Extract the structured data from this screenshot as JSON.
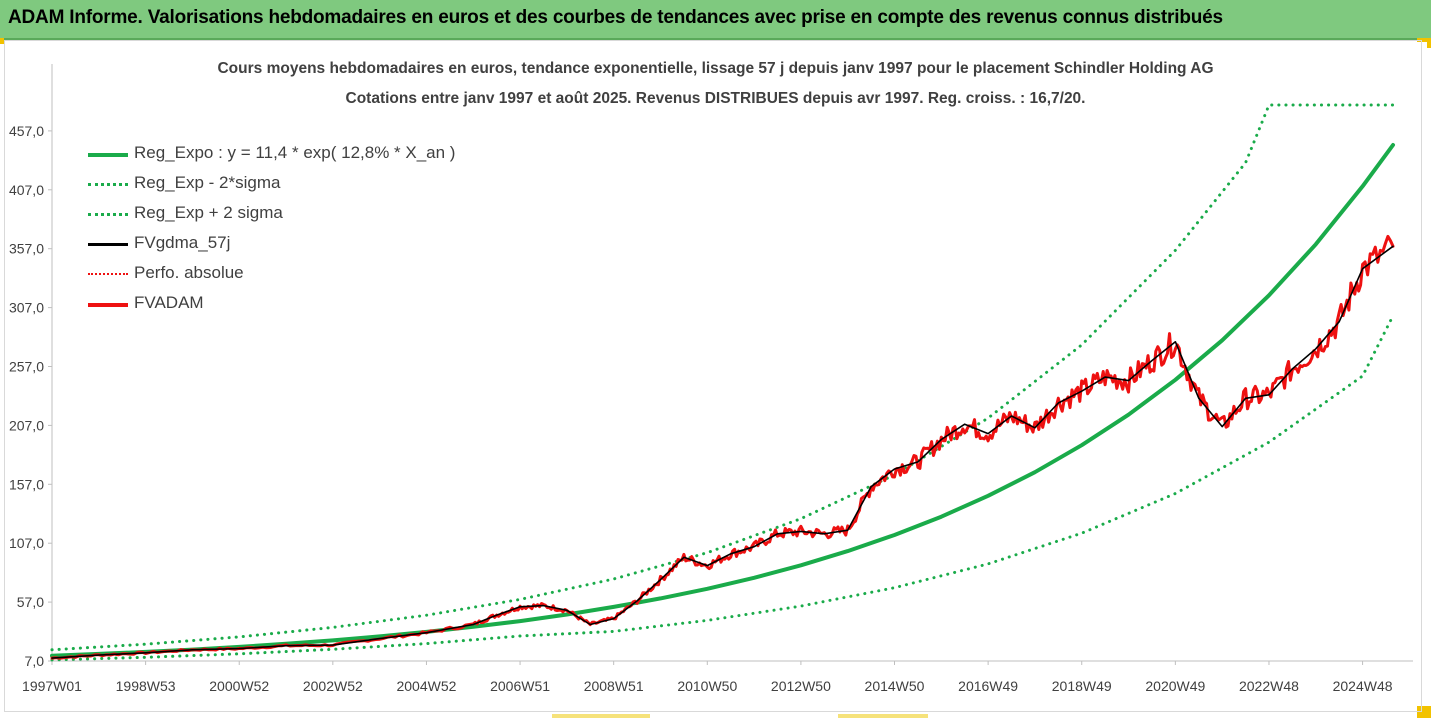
{
  "banner": {
    "title": "ADAM Informe. Valorisations hebdomadaires en euros et des courbes de tendances avec prise en compte des revenus connus distribués"
  },
  "colors": {
    "banner_bg": "#7fc97f",
    "regression": "#1aab4a",
    "fvgdma": "#000000",
    "fvadam": "#ee1111",
    "perfo": "#ee1111",
    "corner_accent": "#f2c200"
  },
  "chart_data": {
    "type": "line",
    "title": "Cours moyens hebdomadaires en euros, tendance exponentielle, lissage 57 j depuis janv 1997 pour le placement Schindler Holding AG",
    "subtitle": "Cotations entre janv 1997 et août 2025. Revenus DISTRIBUES depuis avr 1997. Reg. croiss. : 16,7/20.",
    "xlabel": "",
    "ylabel": "",
    "y_ticks": [
      "7,0",
      "57,0",
      "107,0",
      "157,0",
      "207,0",
      "257,0",
      "307,0",
      "357,0",
      "407,0",
      "457,0"
    ],
    "ylim": [
      7,
      507
    ],
    "x_ticks": [
      "1997W01",
      "1998W53",
      "2000W52",
      "2002W52",
      "2004W52",
      "2006W51",
      "2008W51",
      "2010W50",
      "2012W50",
      "2014W50",
      "2016W49",
      "2018W49",
      "2020W49",
      "2022W48",
      "2024W48"
    ],
    "x_tick_years": [
      1997.0,
      1999.0,
      2001.0,
      2003.0,
      2005.0,
      2007.0,
      2009.0,
      2011.0,
      2013.0,
      2015.0,
      2017.0,
      2019.0,
      2021.0,
      2023.0,
      2025.0
    ],
    "xlim": [
      1997.0,
      2025.65
    ],
    "grid": false,
    "legend_position": "top-left",
    "series": [
      {
        "name": "Reg_Expo : y = 11,4 * exp( 12,8% *  X_an )",
        "style": "solid-thick",
        "color": "#1aab4a",
        "x": [
          1997.0,
          1998.0,
          1999.0,
          2000.0,
          2001.0,
          2002.0,
          2003.0,
          2004.0,
          2005.0,
          2006.0,
          2007.0,
          2008.0,
          2009.0,
          2010.0,
          2011.0,
          2012.0,
          2013.0,
          2014.0,
          2015.0,
          2016.0,
          2017.0,
          2018.0,
          2019.0,
          2020.0,
          2021.0,
          2022.0,
          2023.0,
          2024.0,
          2025.0,
          2025.65
        ],
        "y": [
          11.4,
          13.0,
          14.7,
          16.7,
          19.0,
          21.6,
          24.5,
          27.9,
          31.7,
          36.0,
          40.9,
          46.5,
          52.9,
          60.1,
          68.3,
          77.6,
          88.2,
          100.3,
          114.0,
          129.5,
          147.2,
          167.3,
          190.2,
          216.1,
          245.7,
          279.2,
          317.4,
          360.7,
          410.0,
          445.0
        ]
      },
      {
        "name": "Reg_Exp - 2*sigma",
        "style": "dotted",
        "color": "#1aab4a",
        "x": [
          1997.0,
          1999.0,
          2001.0,
          2003.0,
          2005.0,
          2007.0,
          2009.0,
          2011.0,
          2013.0,
          2015.0,
          2017.0,
          2019.0,
          2021.0,
          2023.0,
          2025.0,
          2025.65
        ],
        "y": [
          7.9,
          10.1,
          13.1,
          16.9,
          21.8,
          28.2,
          32.1,
          41.5,
          53.6,
          69.2,
          89.4,
          115.5,
          149.2,
          192.7,
          248.9,
          300.0
        ]
      },
      {
        "name": "Reg_Exp + 2 sigma",
        "style": "dotted",
        "color": "#1aab4a",
        "x": [
          1997.0,
          1999.0,
          2001.0,
          2003.0,
          2005.0,
          2007.0,
          2009.0,
          2011.0,
          2013.0,
          2015.0,
          2017.0,
          2019.0,
          2021.0,
          2022.5,
          2023.0,
          2025.65
        ],
        "y": [
          16.5,
          21.3,
          27.5,
          35.5,
          45.9,
          59.3,
          76.6,
          98.9,
          127.8,
          165.0,
          213.2,
          275.3,
          355.6,
          430.0,
          479.0,
          479.0
        ]
      },
      {
        "name": "FVgdma_57j",
        "style": "solid",
        "color": "#000000",
        "x": [
          1997.0,
          1998.0,
          1999.0,
          2000.0,
          2001.0,
          2002.0,
          2003.0,
          2004.0,
          2005.0,
          2006.0,
          2006.5,
          2007.0,
          2007.5,
          2008.0,
          2008.5,
          2009.0,
          2009.5,
          2010.0,
          2010.5,
          2011.0,
          2011.5,
          2012.0,
          2012.5,
          2013.0,
          2013.5,
          2014.0,
          2014.5,
          2015.0,
          2015.5,
          2016.0,
          2016.5,
          2017.0,
          2017.5,
          2018.0,
          2018.5,
          2019.0,
          2019.5,
          2020.0,
          2020.5,
          2021.0,
          2021.5,
          2022.0,
          2022.5,
          2023.0,
          2023.5,
          2024.0,
          2024.5,
          2025.0,
          2025.65
        ],
        "y": [
          9.5,
          12.0,
          14.0,
          16.5,
          17.5,
          20.0,
          20.5,
          26.0,
          31.0,
          38.0,
          46.0,
          53.0,
          54.0,
          50.0,
          38.0,
          43.0,
          58.0,
          76.0,
          95.0,
          88.0,
          98.0,
          104.0,
          115.0,
          117.0,
          115.0,
          118.0,
          155.0,
          170.0,
          176.0,
          195.0,
          208.0,
          200.0,
          215.0,
          205.0,
          226.0,
          236.0,
          248.0,
          245.0,
          262.0,
          278.0,
          230.0,
          206.0,
          230.0,
          233.0,
          255.0,
          272.0,
          295.0,
          340.0,
          359.0
        ]
      },
      {
        "name": "Perfo. absolue",
        "style": "dotted",
        "color": "#ee1111",
        "x": [],
        "y": []
      },
      {
        "name": "FVADAM",
        "style": "solid-thick",
        "color": "#ee1111",
        "x": [
          1997.0,
          1998.0,
          1999.0,
          2000.0,
          2001.0,
          2002.0,
          2003.0,
          2004.0,
          2005.0,
          2006.0,
          2006.5,
          2007.0,
          2007.5,
          2008.0,
          2008.5,
          2009.0,
          2009.5,
          2010.0,
          2010.5,
          2011.0,
          2011.5,
          2012.0,
          2012.5,
          2013.0,
          2013.5,
          2014.0,
          2014.5,
          2015.0,
          2015.5,
          2016.0,
          2016.5,
          2017.0,
          2017.5,
          2018.0,
          2018.5,
          2019.0,
          2019.5,
          2020.0,
          2020.5,
          2021.0,
          2021.5,
          2022.0,
          2022.5,
          2023.0,
          2023.5,
          2024.0,
          2024.5,
          2025.0,
          2025.65
        ],
        "y": [
          9.5,
          12.0,
          14.0,
          16.5,
          17.5,
          20.0,
          20.5,
          26.0,
          31.0,
          38.0,
          46.0,
          53.0,
          54.0,
          50.0,
          38.0,
          43.0,
          58.0,
          76.0,
          95.0,
          88.0,
          98.0,
          104.0,
          115.0,
          117.0,
          115.0,
          118.0,
          155.0,
          170.0,
          176.0,
          195.0,
          208.0,
          200.0,
          215.0,
          205.0,
          226.0,
          236.0,
          248.0,
          245.0,
          262.0,
          278.0,
          230.0,
          206.0,
          230.0,
          233.0,
          255.0,
          272.0,
          295.0,
          340.0,
          359.0
        ]
      }
    ]
  }
}
